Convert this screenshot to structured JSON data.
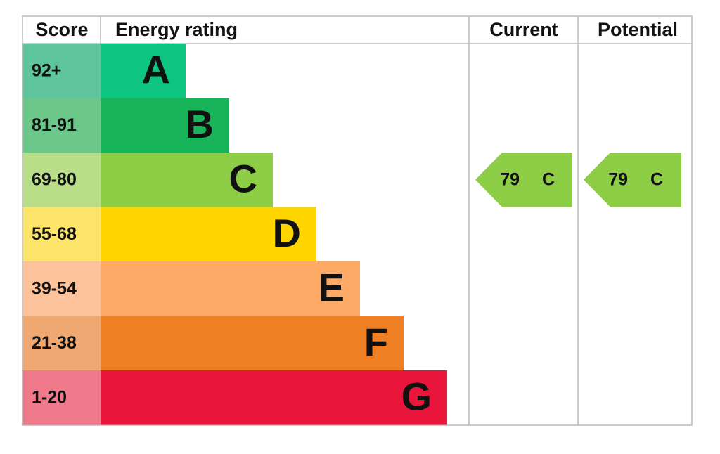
{
  "header": {
    "score": "Score",
    "rating": "Energy rating",
    "current": "Current",
    "potential": "Potential"
  },
  "bands": [
    {
      "score": "92+",
      "letter": "A"
    },
    {
      "score": "81-91",
      "letter": "B"
    },
    {
      "score": "69-80",
      "letter": "C"
    },
    {
      "score": "55-68",
      "letter": "D"
    },
    {
      "score": "39-54",
      "letter": "E"
    },
    {
      "score": "21-38",
      "letter": "F"
    },
    {
      "score": "1-20",
      "letter": "G"
    }
  ],
  "current": {
    "value": 79,
    "letter": "C"
  },
  "potential": {
    "value": 79,
    "letter": "C"
  }
}
